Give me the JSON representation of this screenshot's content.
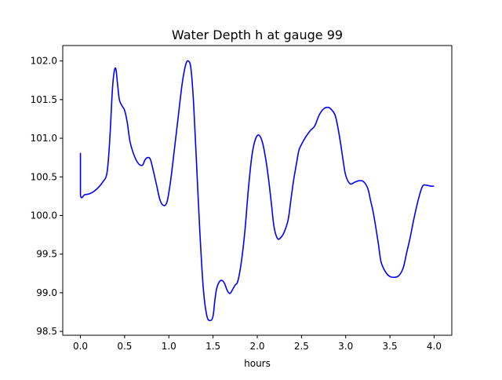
{
  "chart_data": {
    "type": "line",
    "title": "Water Depth h at gauge 99",
    "xlabel": "hours",
    "ylabel": "",
    "xlim": [
      -0.2,
      4.2
    ],
    "ylim": [
      98.45,
      102.2
    ],
    "xticks": [
      0.0,
      0.5,
      1.0,
      1.5,
      2.0,
      2.5,
      3.0,
      3.5,
      4.0
    ],
    "xtick_labels": [
      "0.0",
      "0.5",
      "1.0",
      "1.5",
      "2.0",
      "2.5",
      "3.0",
      "3.5",
      "4.0"
    ],
    "yticks": [
      98.5,
      99.0,
      99.5,
      100.0,
      100.5,
      101.0,
      101.5,
      102.0
    ],
    "ytick_labels": [
      "98.5",
      "99.0",
      "99.5",
      "100.0",
      "100.5",
      "101.0",
      "101.5",
      "102.0"
    ],
    "grid": false,
    "series": [
      {
        "color": "#0000ff",
        "x": [
          0.0,
          0.0,
          0.05,
          0.1,
          0.15,
          0.2,
          0.25,
          0.3,
          0.33,
          0.36,
          0.38,
          0.4,
          0.42,
          0.44,
          0.47,
          0.5,
          0.53,
          0.56,
          0.6,
          0.65,
          0.7,
          0.73,
          0.76,
          0.79,
          0.82,
          0.86,
          0.9,
          0.94,
          0.98,
          1.02,
          1.06,
          1.1,
          1.15,
          1.19,
          1.22,
          1.25,
          1.28,
          1.31,
          1.35,
          1.39,
          1.43,
          1.47,
          1.5,
          1.52,
          1.54,
          1.57,
          1.6,
          1.63,
          1.66,
          1.69,
          1.72,
          1.75,
          1.78,
          1.82,
          1.86,
          1.9,
          1.94,
          1.98,
          2.02,
          2.06,
          2.1,
          2.13,
          2.16,
          2.19,
          2.23,
          2.27,
          2.31,
          2.35,
          2.38,
          2.41,
          2.44,
          2.47,
          2.5,
          2.55,
          2.6,
          2.65,
          2.7,
          2.75,
          2.8,
          2.84,
          2.88,
          2.91,
          2.94,
          2.97,
          3.0,
          3.05,
          3.1,
          3.15,
          3.2,
          3.25,
          3.28,
          3.31,
          3.34,
          3.37,
          3.4,
          3.45,
          3.5,
          3.55,
          3.6,
          3.65,
          3.69,
          3.73,
          3.77,
          3.82,
          3.87,
          3.92,
          3.96,
          4.0
        ],
        "y": [
          100.81,
          100.27,
          100.27,
          100.28,
          100.31,
          100.36,
          100.43,
          100.55,
          100.95,
          101.6,
          101.85,
          101.9,
          101.7,
          101.5,
          101.42,
          101.36,
          101.2,
          100.96,
          100.8,
          100.68,
          100.65,
          100.72,
          100.75,
          100.73,
          100.6,
          100.4,
          100.2,
          100.13,
          100.18,
          100.45,
          100.83,
          101.22,
          101.7,
          101.95,
          102.0,
          101.9,
          101.45,
          100.75,
          99.8,
          99.05,
          98.7,
          98.64,
          98.7,
          98.9,
          99.05,
          99.14,
          99.16,
          99.12,
          99.03,
          98.99,
          99.04,
          99.1,
          99.15,
          99.4,
          99.8,
          100.35,
          100.78,
          100.99,
          101.04,
          100.94,
          100.7,
          100.45,
          100.15,
          99.85,
          99.7,
          99.72,
          99.8,
          99.95,
          100.2,
          100.45,
          100.65,
          100.84,
          100.92,
          101.02,
          101.1,
          101.16,
          101.3,
          101.38,
          101.4,
          101.37,
          101.3,
          101.15,
          100.95,
          100.72,
          100.52,
          100.41,
          100.43,
          100.45,
          100.44,
          100.35,
          100.2,
          100.05,
          99.85,
          99.63,
          99.4,
          99.27,
          99.21,
          99.2,
          99.22,
          99.32,
          99.52,
          99.72,
          99.95,
          100.2,
          100.38,
          100.39,
          100.38,
          100.38
        ]
      }
    ]
  }
}
